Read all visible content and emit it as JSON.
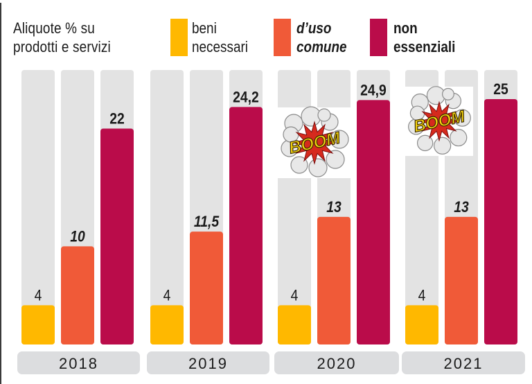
{
  "chart_data": {
    "type": "bar",
    "title": "Aliquote % su\nprodotti e servizi",
    "categories": [
      "2018",
      "2019",
      "2020",
      "2021"
    ],
    "series": [
      {
        "name": "beni\nnecessari",
        "color": "#FFB800",
        "label_style": "regular",
        "values": [
          4,
          4,
          4,
          4
        ],
        "labels": [
          "4",
          "4",
          "4",
          "4"
        ]
      },
      {
        "name": "d’uso\ncomune",
        "color": "#F05A38",
        "label_style": "bold-italic",
        "values": [
          10,
          11.5,
          13,
          13
        ],
        "labels": [
          "10",
          "11,5",
          "13",
          "13"
        ]
      },
      {
        "name": "non\nessenziali",
        "color": "#BA0C4A",
        "label_style": "bold",
        "values": [
          22,
          24.2,
          24.9,
          25
        ],
        "labels": [
          "22",
          "24,2",
          "24,9",
          "25"
        ]
      }
    ],
    "xlabel": "",
    "ylabel": "",
    "ylim": [
      0,
      28
    ],
    "grid": false,
    "legend_position": "top",
    "annotations": [
      {
        "text": "BOOM",
        "category": "2020",
        "kind": "comic-explosion-image"
      },
      {
        "text": "BOOM",
        "category": "2021",
        "kind": "comic-explosion-image"
      }
    ]
  },
  "colors": {
    "track": "#E3E3E3",
    "year_pill": "#DCDDDF",
    "text": "#1a1a1a"
  }
}
